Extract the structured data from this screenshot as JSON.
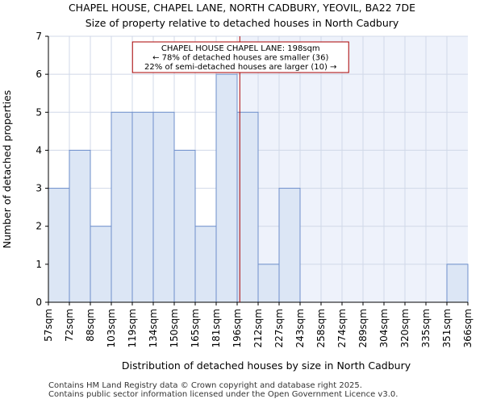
{
  "header": {
    "title": "CHAPEL HOUSE, CHAPEL LANE, NORTH CADBURY, YEOVIL, BA22 7DE",
    "subtitle": "Size of property relative to detached houses in North Cadbury"
  },
  "chart_data": {
    "type": "bar",
    "bin_edges": [
      57,
      72,
      88,
      103,
      119,
      134,
      150,
      165,
      181,
      196,
      212,
      227,
      243,
      258,
      274,
      289,
      304,
      320,
      335,
      351,
      366
    ],
    "tick_labels": [
      "57sqm",
      "72sqm",
      "88sqm",
      "103sqm",
      "119sqm",
      "134sqm",
      "150sqm",
      "165sqm",
      "181sqm",
      "196sqm",
      "212sqm",
      "227sqm",
      "243sqm",
      "258sqm",
      "274sqm",
      "289sqm",
      "304sqm",
      "320sqm",
      "335sqm",
      "351sqm",
      "366sqm"
    ],
    "values": [
      3,
      4,
      2,
      5,
      5,
      5,
      4,
      2,
      6,
      5,
      1,
      3,
      0,
      0,
      0,
      0,
      0,
      0,
      0,
      1
    ],
    "xlabel": "Distribution of detached houses by size in North Cadbury",
    "ylabel": "Number of detached properties",
    "ylim": [
      0,
      7
    ],
    "yticks": [
      0,
      1,
      2,
      3,
      4,
      5,
      6,
      7
    ],
    "grid": true,
    "marker": {
      "value": 198,
      "label": "CHAPEL HOUSE CHAPEL LANE: 198sqm"
    },
    "annotation_lines": [
      "CHAPEL HOUSE CHAPEL LANE: 198sqm",
      "← 78% of detached houses are smaller (36)",
      "22% of semi-detached houses are larger (10) →"
    ],
    "colors": {
      "bar_fill": "#dce6f5",
      "bar_edge": "#6e8fcb",
      "highlight_bg": "#eef2fb",
      "marker": "#aa0000",
      "grid": "#d0d8e8"
    }
  },
  "footer": {
    "line1": "Contains HM Land Registry data © Crown copyright and database right 2025.",
    "line2": "Contains public sector information licensed under the Open Government Licence v3.0."
  }
}
